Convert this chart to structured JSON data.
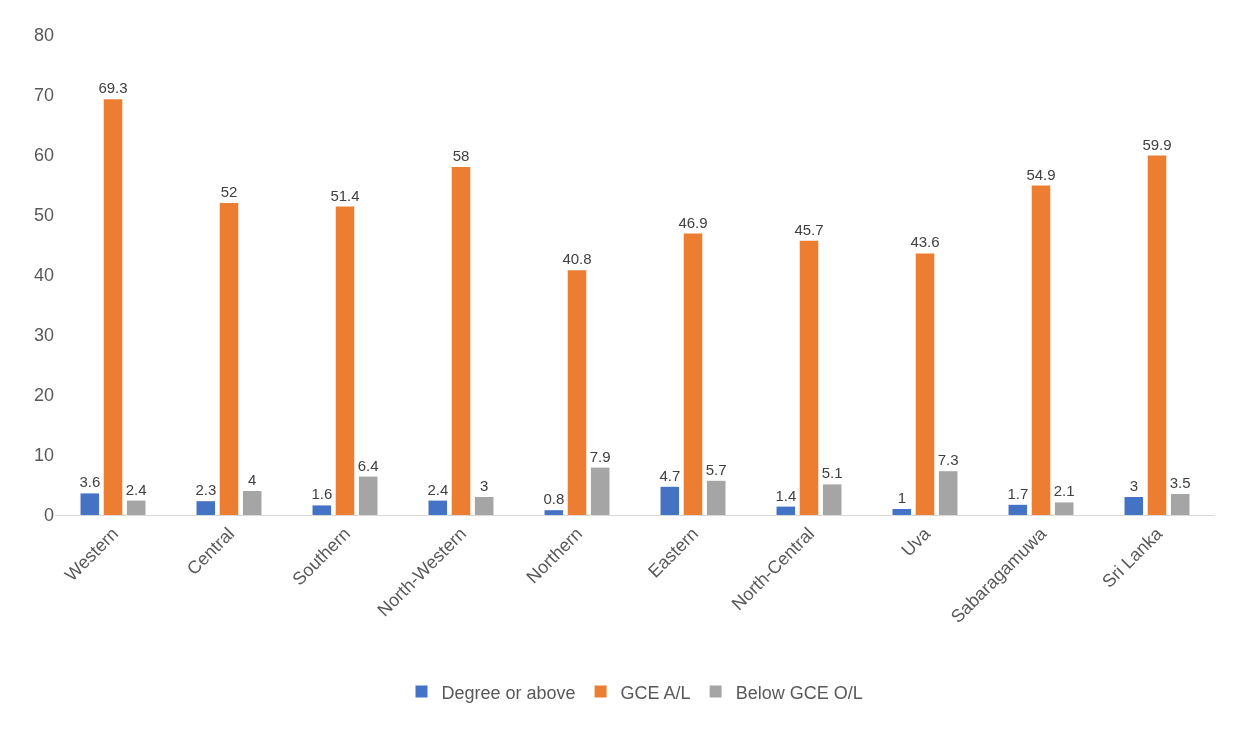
{
  "chart_data": {
    "type": "bar",
    "categories": [
      "Western",
      "Central",
      "Southern",
      "North-Western",
      "Northern",
      "Eastern",
      "North-Central",
      "Uva",
      "Sabaragamuwa",
      "Sri Lanka"
    ],
    "series": [
      {
        "name": "Degree or above",
        "color": "#4472c4",
        "values": [
          3.6,
          2.3,
          1.6,
          2.4,
          0.8,
          4.7,
          1.4,
          1,
          1.7,
          3
        ]
      },
      {
        "name": "GCE A/L",
        "color": "#ed7d31",
        "values": [
          69.3,
          52,
          51.4,
          58,
          40.8,
          46.9,
          45.7,
          43.6,
          54.9,
          59.9
        ]
      },
      {
        "name": "Below GCE O/L",
        "color": "#a5a5a5",
        "values": [
          2.4,
          4,
          6.4,
          3,
          7.9,
          5.7,
          5.1,
          7.3,
          2.1,
          3.5
        ]
      }
    ],
    "ylim": [
      0,
      80
    ],
    "yticks": [
      0,
      10,
      20,
      30,
      40,
      50,
      60,
      70,
      80
    ],
    "grid": false,
    "legend": "bottom",
    "data_labels": true
  }
}
